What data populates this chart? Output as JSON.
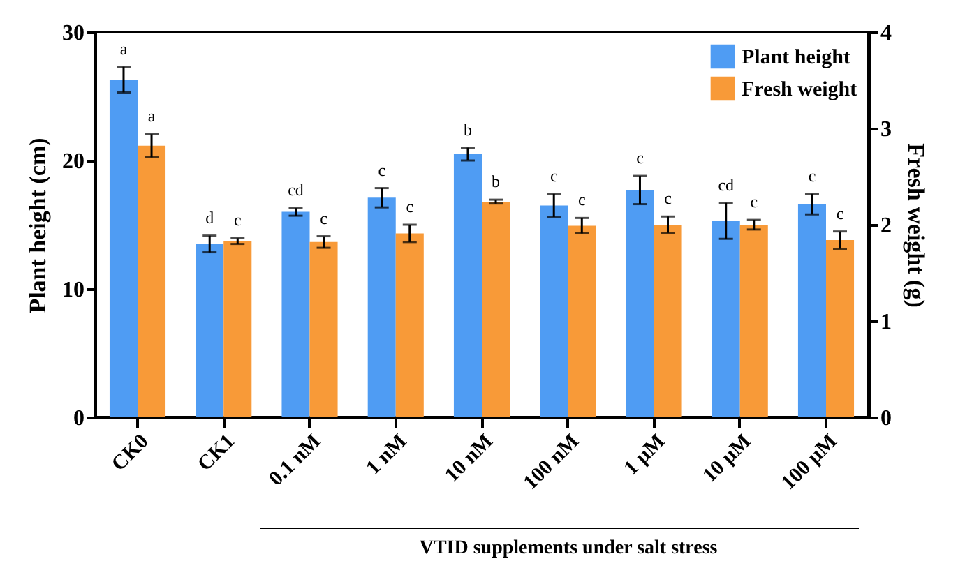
{
  "chart_data": {
    "type": "bar",
    "xlabel": "VTID supplements under salt stress",
    "ylabel": "Plant height (cm)",
    "y2label": "Fresh weight (g)",
    "categories": [
      "CK0",
      "CK1",
      "0.1 nM",
      "1 nM",
      "10 nM",
      "100 nM",
      "1 µM",
      "10 µM",
      "100 µM"
    ],
    "series": [
      {
        "name": "Plant height",
        "color": "#4f9cf3",
        "values": [
          26.3,
          13.5,
          16.0,
          17.1,
          20.5,
          16.5,
          17.7,
          15.3,
          16.6
        ],
        "errors": [
          1.0,
          0.65,
          0.3,
          0.75,
          0.5,
          0.9,
          1.1,
          1.4,
          0.8
        ],
        "value_labels": [
          "a",
          "d",
          "cd",
          "c",
          "b",
          "c",
          "c",
          "cd",
          "c"
        ]
      },
      {
        "name": "Fresh weight",
        "color": "#f89a38",
        "axis": "y2",
        "values": [
          2.82,
          1.83,
          1.82,
          1.91,
          2.24,
          1.99,
          2.0,
          2.0,
          1.84
        ],
        "errors": [
          0.12,
          0.03,
          0.06,
          0.09,
          0.02,
          0.08,
          0.085,
          0.05,
          0.09
        ],
        "value_labels": [
          "a",
          "c",
          "c",
          "c",
          "b",
          "c",
          "c",
          "c",
          "c"
        ]
      }
    ],
    "ylim": [
      0,
      30
    ],
    "yticks": [
      0,
      10,
      20,
      30
    ],
    "y2lim": [
      0,
      4
    ],
    "y2ticks": [
      0,
      1,
      2,
      3,
      4
    ],
    "legend": "top right",
    "grid": false
  }
}
